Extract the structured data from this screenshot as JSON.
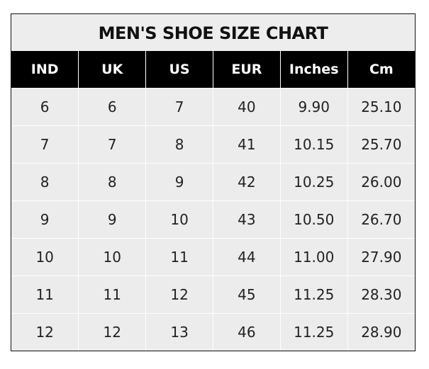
{
  "title": "MEN'S SHOE SIZE CHART",
  "headers": [
    "IND",
    "UK",
    "US",
    "EUR",
    "Inches",
    "Cm"
  ],
  "rows": [
    [
      "6",
      "6",
      "7",
      "40",
      "9.90",
      "25.10"
    ],
    [
      "7",
      "7",
      "8",
      "41",
      "10.15",
      "25.70"
    ],
    [
      "8",
      "8",
      "9",
      "42",
      "10.25",
      "26.00"
    ],
    [
      "9",
      "9",
      "10",
      "43",
      "10.50",
      "26.70"
    ],
    [
      "10",
      "10",
      "11",
      "44",
      "11.00",
      "27.90"
    ],
    [
      "11",
      "11",
      "12",
      "45",
      "11.25",
      "28.30"
    ],
    [
      "12",
      "12",
      "13",
      "46",
      "11.25",
      "28.90"
    ]
  ],
  "colors": {
    "header_bg": "#000000",
    "cell_bg": "#ececec",
    "grid": "#ffffff"
  }
}
